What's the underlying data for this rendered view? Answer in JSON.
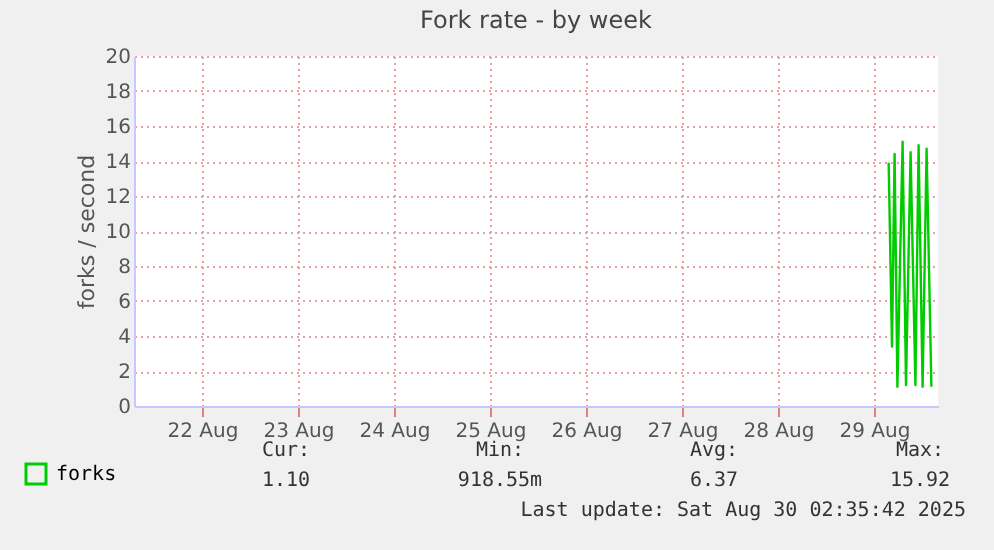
{
  "chart_data": {
    "type": "line",
    "title": "Fork rate - by week",
    "ylabel": "forks / second",
    "x": [
      "2025-08-29T15:40",
      "2025-08-29T16:30",
      "2025-08-29T17:09",
      "2025-08-29T17:51",
      "2025-08-29T19:09",
      "2025-08-29T20:00",
      "2025-08-29T21:09",
      "2025-08-29T22:21",
      "2025-08-29T23:09",
      "2025-08-30T00:09",
      "2025-08-30T01:09",
      "2025-08-30T02:21"
    ],
    "series": [
      {
        "name": "forks",
        "color": "#00cc00",
        "values": [
          13.9,
          3.4,
          14.4,
          1.1,
          15.1,
          1.2,
          14.5,
          1.2,
          14.9,
          1.1,
          14.7,
          1.1
        ]
      }
    ],
    "xlim": [
      "2025-08-21T19:00",
      "2025-08-30T04:00"
    ],
    "xticks": [
      {
        "value": "2025-08-22T12:00",
        "label": "22 Aug"
      },
      {
        "value": "2025-08-23T12:00",
        "label": "23 Aug"
      },
      {
        "value": "2025-08-24T12:00",
        "label": "24 Aug"
      },
      {
        "value": "2025-08-25T12:00",
        "label": "25 Aug"
      },
      {
        "value": "2025-08-26T12:00",
        "label": "26 Aug"
      },
      {
        "value": "2025-08-27T12:00",
        "label": "27 Aug"
      },
      {
        "value": "2025-08-28T12:00",
        "label": "28 Aug"
      },
      {
        "value": "2025-08-29T12:00",
        "label": "29 Aug"
      }
    ],
    "ylim": [
      0,
      20
    ],
    "yticks": [
      0,
      2,
      4,
      6,
      8,
      10,
      12,
      14,
      16,
      18,
      20
    ],
    "grid": true,
    "legend": "bottom left",
    "marker": "none",
    "line_style": "solid",
    "annotations": [
      "Cur:",
      "Min:",
      "Avg:",
      "Max:",
      "1.10",
      "918.55m",
      "6.37",
      "15.92",
      "Last update: Sat Aug 30 02:35:42 2025"
    ]
  }
}
